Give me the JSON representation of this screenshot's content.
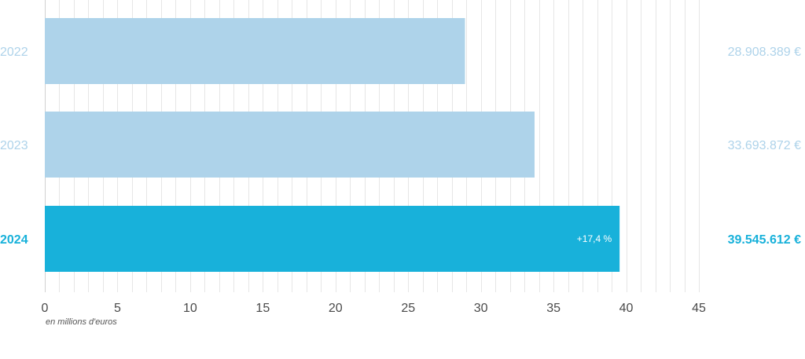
{
  "chart_data": {
    "type": "bar",
    "orientation": "horizontal",
    "categories": [
      "2022",
      "2023",
      "2024"
    ],
    "values": [
      28.908389,
      33.693872,
      39.545612
    ],
    "value_labels": [
      "28.908.389 €",
      "33.693.872 €",
      "39.545.612 €"
    ],
    "bar_annotations": [
      "",
      "",
      "+17,4 %"
    ],
    "highlight_index": 2,
    "x_ticks": [
      0,
      5,
      10,
      15,
      20,
      25,
      30,
      35,
      40,
      45
    ],
    "xlim": [
      0,
      45
    ],
    "xlabel": "en millions d'euros",
    "grid": true,
    "colors": {
      "bar": "#aed3ea",
      "bar_highlight": "#18b1da",
      "label": "#aed3ea",
      "label_highlight": "#18b1da",
      "grid": "#e6e6e6"
    }
  }
}
